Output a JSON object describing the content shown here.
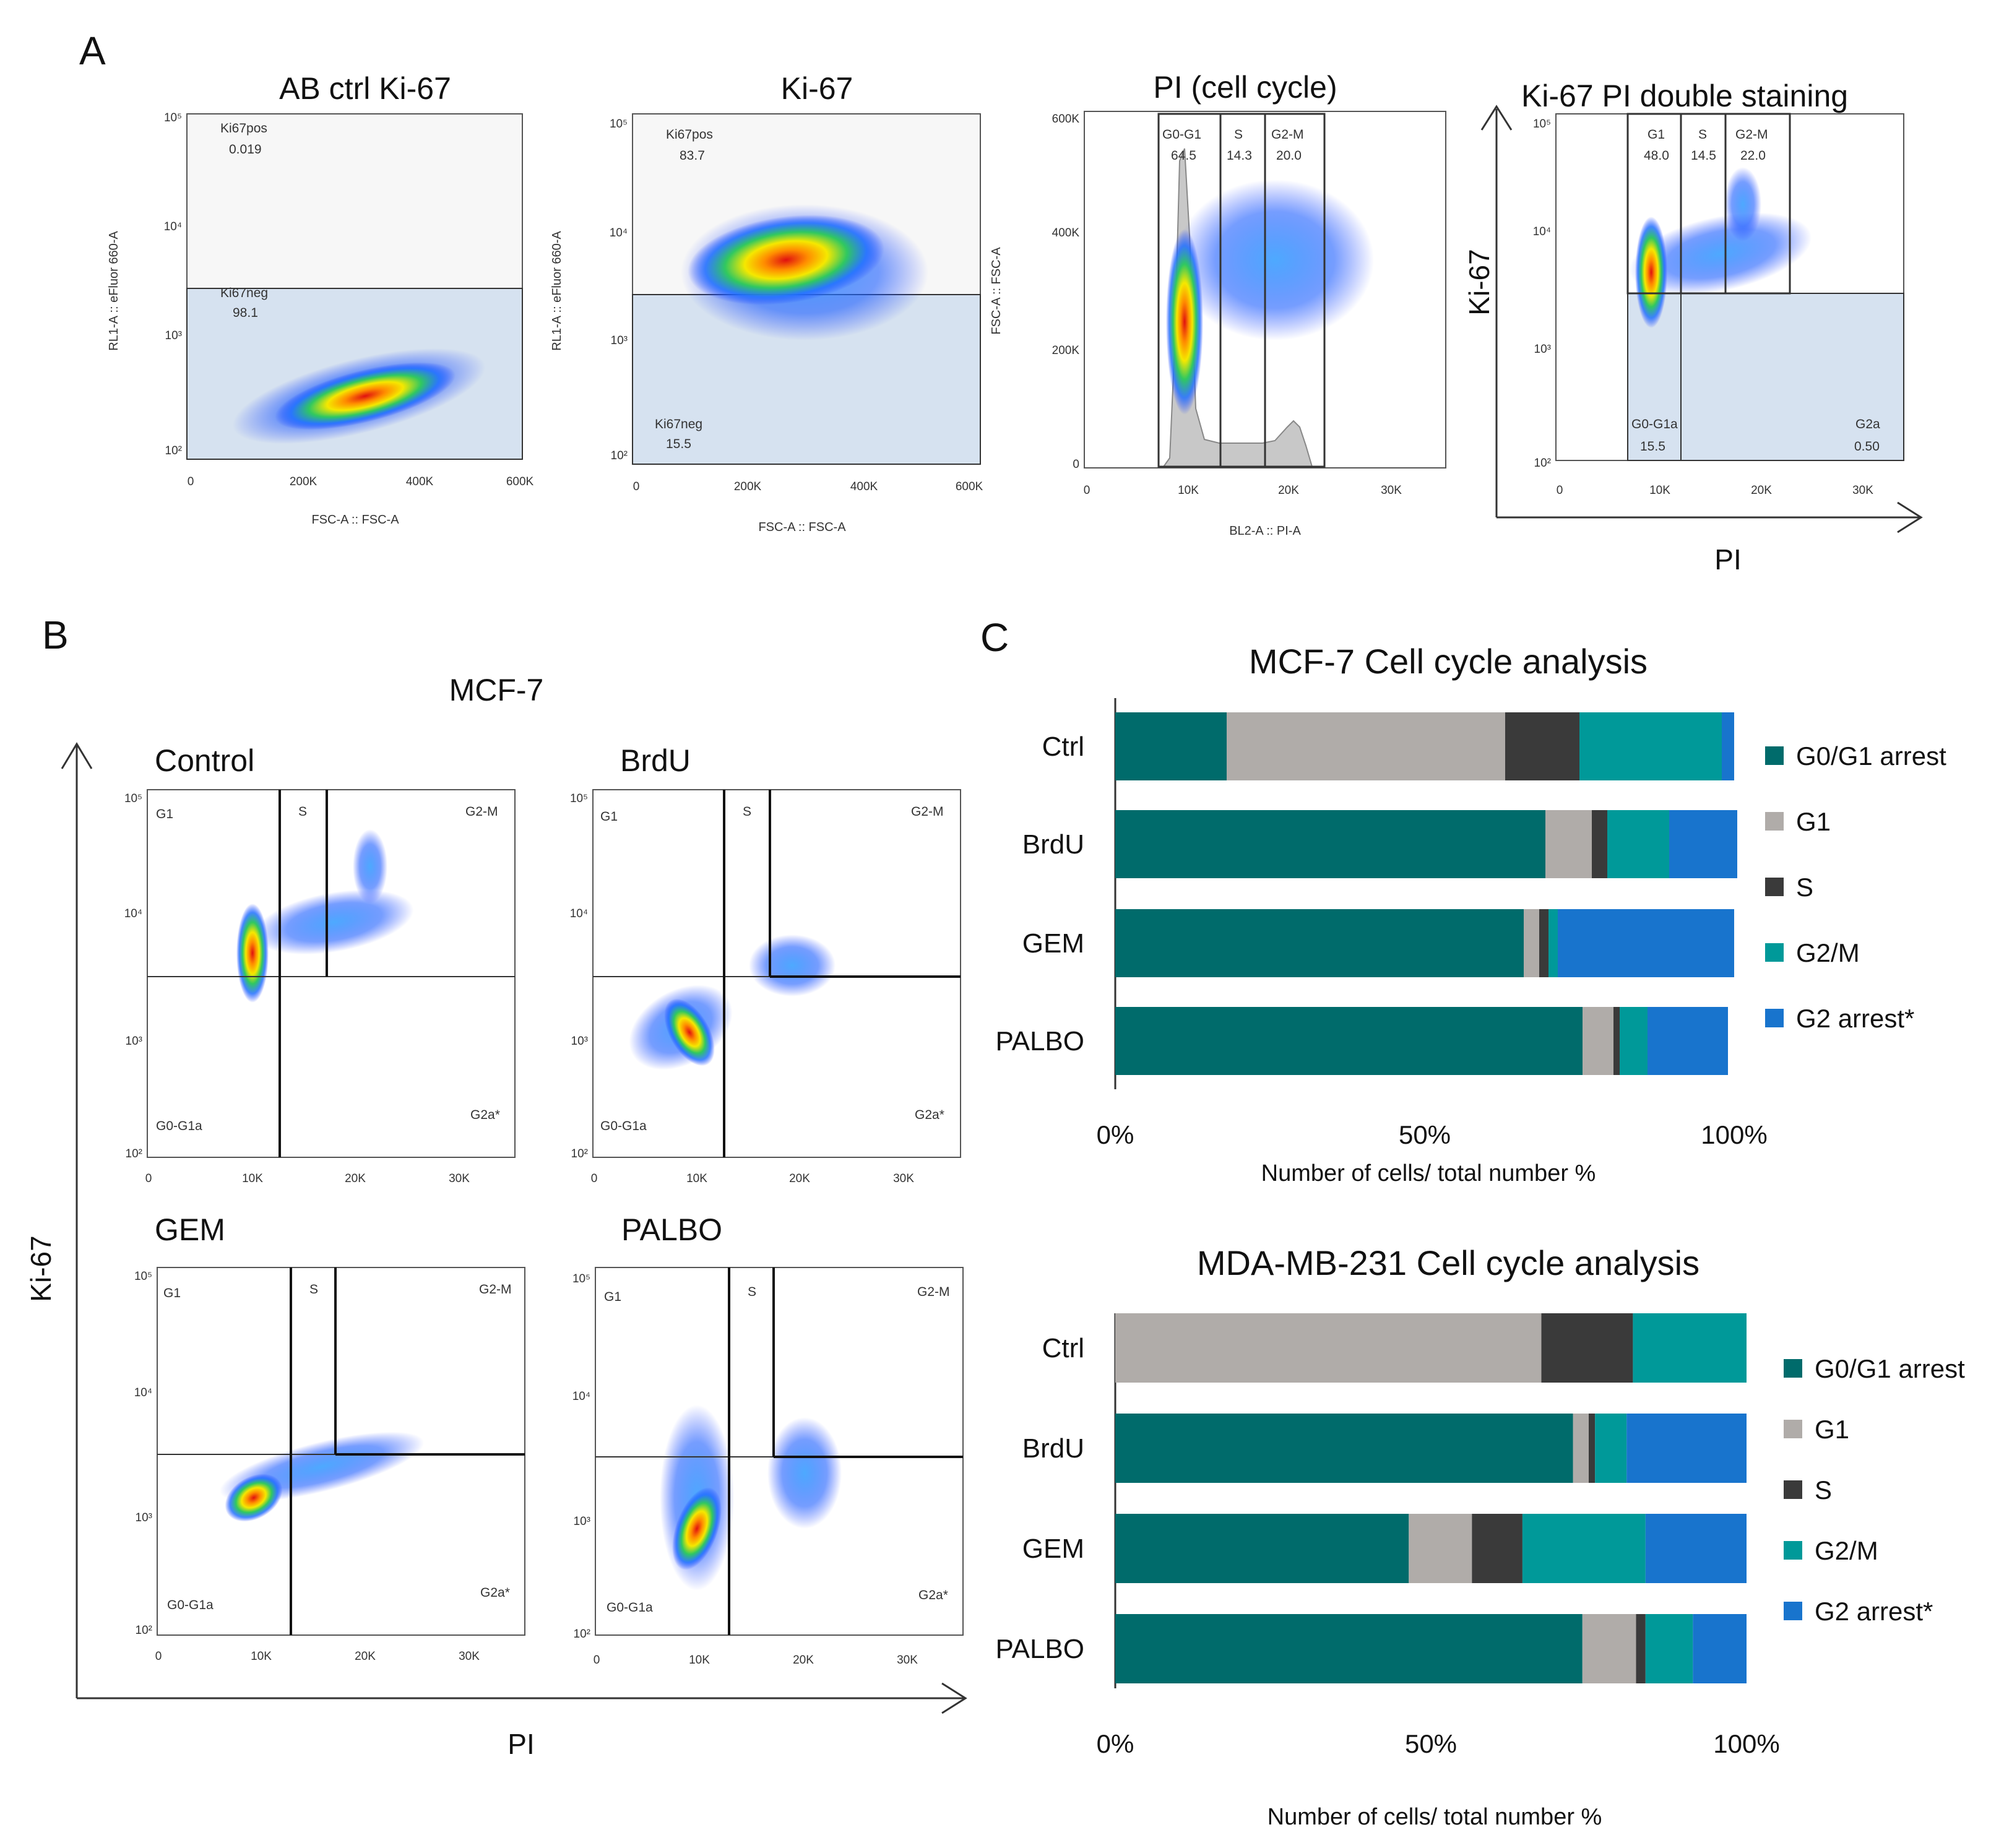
{
  "panel_labels": {
    "a": "A",
    "b": "B",
    "c": "C"
  },
  "panel_a": {
    "plots": [
      {
        "title": "AB ctrl Ki-67",
        "ylabel": "RL1-A :: eFluor 660-A",
        "xlabel": "FSC-A :: FSC-A",
        "xticks": [
          "0",
          "200K",
          "400K",
          "600K"
        ],
        "yticks": [
          "10²",
          "10³",
          "10⁴",
          "10⁵"
        ],
        "gates": [
          {
            "name": "Ki67pos",
            "value": "0.019"
          },
          {
            "name": "Ki67neg",
            "value": "98.1"
          }
        ]
      },
      {
        "title": "Ki-67",
        "ylabel": "RL1-A :: eFluor 660-A",
        "xlabel": "FSC-A :: FSC-A",
        "xticks": [
          "0",
          "200K",
          "400K",
          "600K"
        ],
        "yticks": [
          "10²",
          "10³",
          "10⁴",
          "10⁵"
        ],
        "gates": [
          {
            "name": "Ki67pos",
            "value": "83.7"
          },
          {
            "name": "Ki67neg",
            "value": "15.5"
          }
        ]
      },
      {
        "title": "PI (cell cycle)",
        "ylabel": "FSC-A :: FSC-A",
        "xlabel": "BL2-A :: PI-A",
        "xticks": [
          "0",
          "10K",
          "20K",
          "30K"
        ],
        "yticks": [
          "0",
          "200K",
          "400K",
          "600K"
        ],
        "gates": [
          {
            "name": "G0-G1",
            "value": "64.5"
          },
          {
            "name": "S",
            "value": "14.3"
          },
          {
            "name": "G2-M",
            "value": "20.0"
          }
        ]
      },
      {
        "title": "Ki-67 PI double staining",
        "ylabel": "Ki-67",
        "xlabel": "PI",
        "xticks": [
          "0",
          "10K",
          "20K",
          "30K"
        ],
        "yticks": [
          "10²",
          "10³",
          "10⁴",
          "10⁵"
        ],
        "gates": [
          {
            "name": "G1",
            "value": "48.0"
          },
          {
            "name": "S",
            "value": "14.5"
          },
          {
            "name": "G2-M",
            "value": "22.0"
          },
          {
            "name": "G0-G1a",
            "value": "15.5"
          },
          {
            "name": "G2a",
            "value": "0.50"
          }
        ]
      }
    ]
  },
  "panel_b": {
    "title": "MCF-7",
    "ylabel": "Ki-67",
    "xlabel": "PI",
    "xticks": [
      "0",
      "10K",
      "20K",
      "30K"
    ],
    "yticks": [
      "10²",
      "10³",
      "10⁴",
      "10⁵"
    ],
    "gate_labels": {
      "g1": "G1",
      "s": "S",
      "g2m": "G2-M",
      "g0g1a": "G0-G1a",
      "g2a": "G2a*"
    },
    "plots": [
      {
        "title": "Control"
      },
      {
        "title": "BrdU"
      },
      {
        "title": "GEM"
      },
      {
        "title": "PALBO"
      }
    ]
  },
  "colors": {
    "g0g1_arrest": "#006B6B",
    "g1": "#B0ACA9",
    "s": "#3A3A3A",
    "g2m": "#009999",
    "g2_arrest": "#1874CD",
    "gate_fill": "#D6E2F0",
    "gate_bg": "#F7F7F7"
  },
  "chart_data": [
    {
      "type": "bar",
      "orientation": "horizontal",
      "stacked": true,
      "title": "MCF-7 Cell cycle analysis",
      "xlabel": "Number of cells/ total number %",
      "ylabel": "",
      "xlim": [
        0,
        100
      ],
      "xticks": [
        "0%",
        "50%",
        "100%"
      ],
      "legend_position": "right",
      "categories": [
        "Ctrl",
        "BrdU",
        "GEM",
        "PALBO"
      ],
      "series": [
        {
          "name": "G0/G1 arrest",
          "values": [
            18,
            69.5,
            66,
            75.5
          ]
        },
        {
          "name": "G1",
          "values": [
            45,
            7.5,
            2.5,
            5
          ]
        },
        {
          "name": "S",
          "values": [
            12,
            2.5,
            1.5,
            1
          ]
        },
        {
          "name": "G2/M",
          "values": [
            23,
            10,
            1.5,
            4.5
          ]
        },
        {
          "name": "G2 arrest*",
          "values": [
            2,
            11,
            28.5,
            13
          ]
        }
      ]
    },
    {
      "type": "bar",
      "orientation": "horizontal",
      "stacked": true,
      "title": "MDA-MB-231 Cell cycle analysis",
      "xlabel": "Number of cells/ total number %",
      "ylabel": "",
      "xlim": [
        0,
        100
      ],
      "xticks": [
        "0%",
        "50%",
        "100%"
      ],
      "legend_position": "right",
      "categories": [
        "Ctrl",
        "BrdU",
        "GEM",
        "PALBO"
      ],
      "series": [
        {
          "name": "G0/G1 arrest",
          "values": [
            0,
            72.5,
            46.5,
            74
          ]
        },
        {
          "name": "G1",
          "values": [
            67.5,
            2.5,
            10,
            8.5
          ]
        },
        {
          "name": "S",
          "values": [
            14.5,
            1,
            8,
            1.5
          ]
        },
        {
          "name": "G2/M",
          "values": [
            18,
            5,
            19.5,
            7.5
          ]
        },
        {
          "name": "G2 arrest*",
          "values": [
            0,
            19,
            16,
            8.5
          ]
        }
      ]
    }
  ]
}
